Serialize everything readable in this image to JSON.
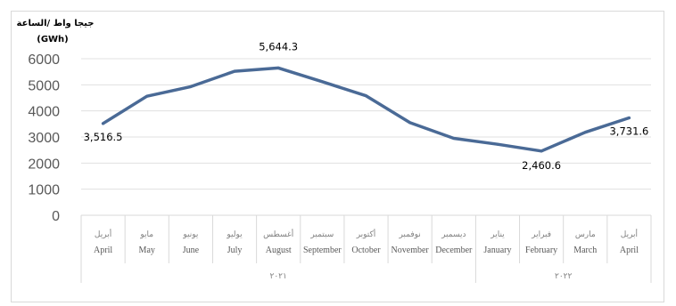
{
  "chart_data": {
    "type": "line",
    "ylabel": "جيجا واط /الساعة",
    "ylabel_unit": "(GWh)",
    "ylim": [
      0,
      6000
    ],
    "yticks": [
      "0",
      "1000",
      "2000",
      "3000",
      "4000",
      "5000",
      "6000"
    ],
    "grid": true,
    "line_color": "#4a6a96",
    "categories_ar": [
      "أبريل",
      "مايو",
      "يونيو",
      "يوليو",
      "أغسطس",
      "سبتمبر",
      "أكتوبر",
      "نوفمبر",
      "ديسمبر",
      "يناير",
      "فبراير",
      "مارس",
      "أبريل"
    ],
    "categories_en": [
      "April",
      "May",
      "June",
      "July",
      "August",
      "September",
      "October",
      "November",
      "December",
      "January",
      "February",
      "March",
      "April"
    ],
    "years": [
      {
        "label": "٢٠٢١",
        "span": 9
      },
      {
        "label": "٢٠٢٢",
        "span": 4
      }
    ],
    "values": [
      3516.5,
      4560,
      4930,
      5520,
      5644.3,
      5120,
      4580,
      3550,
      2950,
      2720,
      2460.6,
      3180,
      3731.6
    ],
    "data_labels": [
      {
        "index": 0,
        "text": "3,516.5"
      },
      {
        "index": 4,
        "text": "5,644.3"
      },
      {
        "index": 10,
        "text": "2,460.6"
      },
      {
        "index": 12,
        "text": "3,731.6"
      }
    ]
  }
}
